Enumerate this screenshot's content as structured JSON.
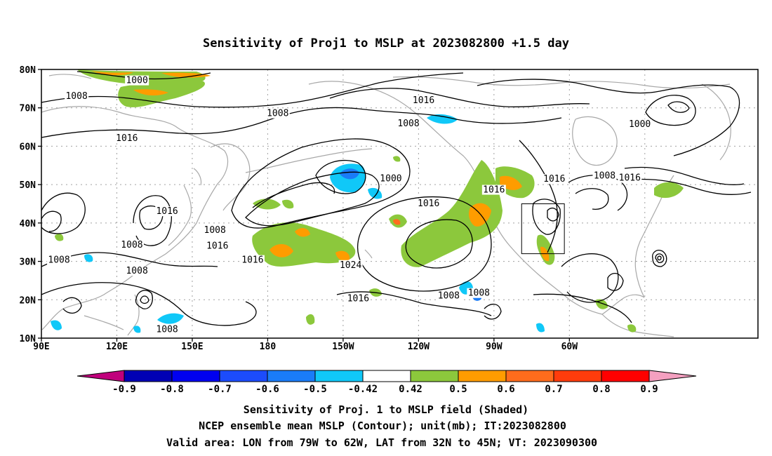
{
  "title": "Sensitivity of Proj1 to MSLP at 2023082800 +1.5 day",
  "map": {
    "lat_ticks": [
      "80N",
      "70N",
      "60N",
      "50N",
      "40N",
      "30N",
      "20N",
      "10N"
    ],
    "lon_ticks": [
      "90E",
      "120E",
      "150E",
      "180",
      "150W",
      "120W",
      "90W",
      "60W"
    ],
    "contour_labels": [
      {
        "text": "1000",
        "lon": 128,
        "lat": 76.6
      },
      {
        "text": "1008",
        "lon": 104,
        "lat": 72.5
      },
      {
        "text": "1008",
        "lon": -176,
        "lat": 68
      },
      {
        "text": "1016",
        "lon": -118,
        "lat": 71.4
      },
      {
        "text": "1008",
        "lon": -124,
        "lat": 65.4
      },
      {
        "text": "1000",
        "lon": -32,
        "lat": 65.2
      },
      {
        "text": "1016",
        "lon": 124,
        "lat": 61.5
      },
      {
        "text": "1000",
        "lon": -131,
        "lat": 51
      },
      {
        "text": "1016",
        "lon": -66,
        "lat": 50.9
      },
      {
        "text": "1008",
        "lon": -46,
        "lat": 51.8
      },
      {
        "text": "1016",
        "lon": -36,
        "lat": 51.2
      },
      {
        "text": "1016",
        "lon": -90,
        "lat": 48.1
      },
      {
        "text": "1016",
        "lon": 140,
        "lat": 42.5
      },
      {
        "text": "1016",
        "lon": -116,
        "lat": 44.5
      },
      {
        "text": "1008",
        "lon": 159,
        "lat": 37.6
      },
      {
        "text": "1016",
        "lon": 160,
        "lat": 33.5
      },
      {
        "text": "1008",
        "lon": 126,
        "lat": 33.8
      },
      {
        "text": "1008",
        "lon": 97,
        "lat": 29.8
      },
      {
        "text": "1016",
        "lon": 174,
        "lat": 29.8
      },
      {
        "text": "1024",
        "lon": -147,
        "lat": 28.5
      },
      {
        "text": "1008",
        "lon": 128,
        "lat": 27
      },
      {
        "text": "1016",
        "lon": -144,
        "lat": 19.8
      },
      {
        "text": "1008",
        "lon": -108,
        "lat": 20.5
      },
      {
        "text": "1008",
        "lon": -96,
        "lat": 21.2
      },
      {
        "text": "1008",
        "lon": 140,
        "lat": 11.7
      }
    ]
  },
  "colorbar": {
    "labels": [
      "-0.9",
      "-0.8",
      "-0.7",
      "-0.6",
      "-0.5",
      "-0.42",
      "0.42",
      "0.5",
      "0.6",
      "0.7",
      "0.8",
      "0.9"
    ],
    "colors": [
      "#c0007c",
      "#0000b4",
      "#0000f0",
      "#1c4cfc",
      "#1a7cf8",
      "#10c8f8",
      "#ffffff",
      "#8cc83c",
      "#ff9c00",
      "#ff6c1c",
      "#ff3c0c",
      "#ff0000",
      "#f4a0c0"
    ]
  },
  "caption": [
    "Sensitivity of Proj. 1 to MSLP field (Shaded)",
    "NCEP ensemble mean MSLP (Contour); unit(mb); IT:2023082800",
    "Valid area: LON from 79W to 62W, LAT from 32N to 45N; VT: 2023090300"
  ],
  "valid_area": {
    "lon_min": -79,
    "lon_max": -62,
    "lat_min": 32,
    "lat_max": 45
  }
}
